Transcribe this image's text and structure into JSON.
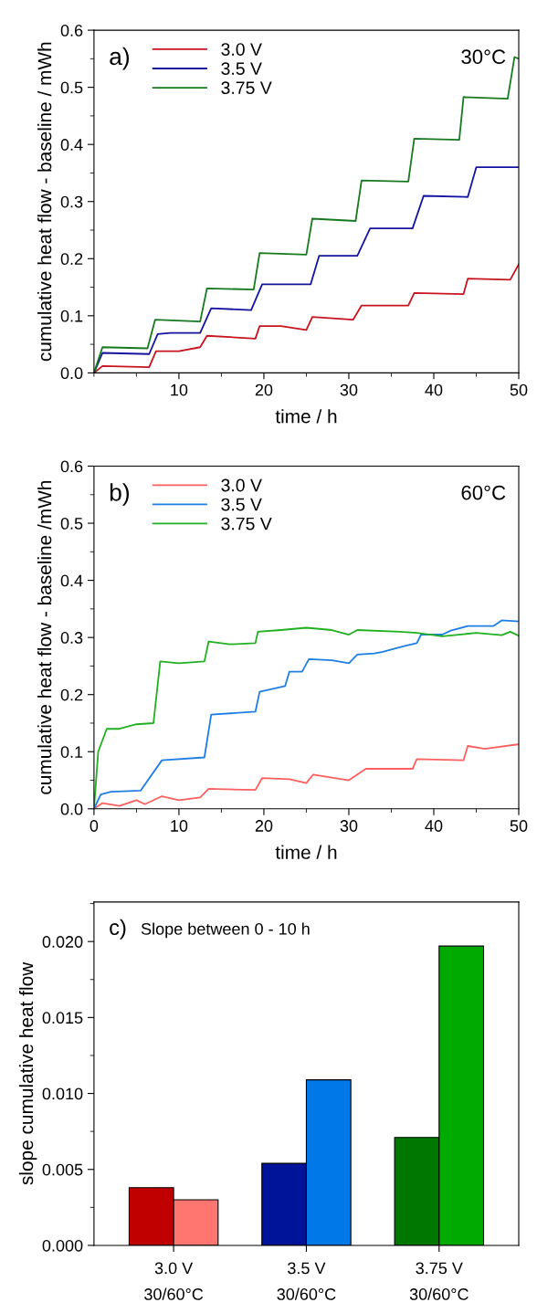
{
  "chart_data": [
    {
      "type": "line",
      "xlabel": "time / h",
      "ylabel": "cumulative heat flow - baseline / mWh",
      "annotations": [
        "a)",
        "30°C"
      ],
      "xlim": [
        0,
        50
      ],
      "xticks": [
        10,
        20,
        30,
        40,
        50
      ],
      "ylim": [
        0,
        0.6
      ],
      "yticks": [
        {
          "value": 0,
          "label": "0.0"
        },
        0.1,
        0.2,
        0.3,
        0.4,
        0.5,
        0.6
      ],
      "legend": "top left",
      "grid": false,
      "series": [
        {
          "name": "3.0 V",
          "color": "#c8141e",
          "x": [
            0,
            1,
            6.5,
            7.3,
            10,
            12.5,
            13.3,
            19,
            19.5,
            22,
            25,
            25.7,
            30.5,
            31.5,
            37,
            37.7,
            43.5,
            44,
            49,
            50
          ],
          "values": [
            0,
            0.012,
            0.01,
            0.038,
            0.038,
            0.045,
            0.065,
            0.06,
            0.082,
            0.082,
            0.075,
            0.098,
            0.093,
            0.118,
            0.118,
            0.14,
            0.138,
            0.165,
            0.163,
            0.19
          ]
        },
        {
          "name": "3.5 V",
          "color": "#1414a0",
          "x": [
            0,
            1,
            6.5,
            7.5,
            9,
            12.5,
            13.8,
            18.5,
            19.8,
            25.5,
            26.5,
            31,
            32.5,
            37.5,
            38.8,
            44,
            45,
            50
          ],
          "values": [
            0,
            0.035,
            0.033,
            0.068,
            0.07,
            0.07,
            0.113,
            0.11,
            0.155,
            0.155,
            0.205,
            0.205,
            0.253,
            0.253,
            0.31,
            0.308,
            0.36,
            0.36
          ]
        },
        {
          "name": "3.75 V",
          "color": "#167a1e",
          "x": [
            0,
            1,
            6.3,
            7.2,
            12.5,
            13.3,
            18.8,
            19.5,
            25,
            25.7,
            30.8,
            31.5,
            37,
            37.7,
            43,
            43.5,
            48.7,
            49.5,
            50
          ],
          "values": [
            0,
            0.045,
            0.043,
            0.093,
            0.09,
            0.148,
            0.146,
            0.21,
            0.207,
            0.27,
            0.266,
            0.337,
            0.335,
            0.41,
            0.408,
            0.483,
            0.48,
            0.553,
            0.55
          ]
        }
      ]
    },
    {
      "type": "line",
      "xlabel": "time / h",
      "ylabel": "cumulative heat flow - baseline /mWh",
      "annotations": [
        "b)",
        "60°C"
      ],
      "xlim": [
        0,
        50
      ],
      "xticks": [
        0,
        10,
        20,
        30,
        40,
        50
      ],
      "ylim": [
        0,
        0.6
      ],
      "yticks": [
        {
          "value": 0,
          "label": "0.0"
        },
        0.1,
        0.2,
        0.3,
        0.4,
        0.5,
        0.6
      ],
      "legend": "top left",
      "grid": false,
      "series": [
        {
          "name": "3.0 V",
          "color": "#ff5f5f",
          "x": [
            0,
            1,
            3,
            5,
            6,
            8,
            10,
            12.5,
            13.5,
            19,
            19.8,
            23,
            25,
            25.8,
            30,
            32,
            37.5,
            38,
            43.5,
            44,
            46,
            50
          ],
          "values": [
            0,
            0.01,
            0.005,
            0.015,
            0.008,
            0.022,
            0.015,
            0.02,
            0.035,
            0.033,
            0.054,
            0.052,
            0.045,
            0.06,
            0.05,
            0.07,
            0.07,
            0.087,
            0.085,
            0.11,
            0.105,
            0.113
          ]
        },
        {
          "name": "3.5 V",
          "color": "#1e7ee6",
          "x": [
            0,
            0.8,
            2,
            5.5,
            8,
            13,
            13.8,
            19,
            19.5,
            22.5,
            23,
            24.5,
            25.3,
            28,
            30,
            31,
            33,
            34,
            36.5,
            38,
            38.5,
            41,
            42,
            44,
            47,
            48,
            50
          ],
          "values": [
            0,
            0.025,
            0.03,
            0.032,
            0.085,
            0.09,
            0.165,
            0.17,
            0.205,
            0.215,
            0.24,
            0.24,
            0.262,
            0.26,
            0.255,
            0.27,
            0.272,
            0.275,
            0.285,
            0.29,
            0.305,
            0.305,
            0.312,
            0.32,
            0.32,
            0.33,
            0.328
          ]
        },
        {
          "name": "3.75 V",
          "color": "#20b020",
          "x": [
            0,
            0.5,
            1.5,
            3,
            5,
            7,
            7.8,
            10,
            13,
            13.5,
            16,
            19,
            19.3,
            22,
            25,
            28,
            30,
            31,
            36,
            38,
            41,
            45,
            48,
            49,
            50
          ],
          "values": [
            0,
            0.1,
            0.14,
            0.14,
            0.148,
            0.15,
            0.258,
            0.255,
            0.258,
            0.293,
            0.288,
            0.29,
            0.31,
            0.313,
            0.317,
            0.313,
            0.305,
            0.313,
            0.31,
            0.308,
            0.302,
            0.308,
            0.304,
            0.31,
            0.303
          ]
        }
      ]
    },
    {
      "type": "bar",
      "ylabel": "slope cumulative heat flow",
      "annotations": [
        "c)",
        "Slope between 0 - 10 h"
      ],
      "categories": [
        "3.0 V\n30/60°C",
        "3.5 V\n30/60°C",
        "3.75 V\n30/60°C"
      ],
      "ylim": [
        0,
        0.0226
      ],
      "yticks": [
        {
          "value": 0,
          "label": "0.000"
        },
        {
          "value": 0.005,
          "label": "0.005"
        },
        {
          "value": 0.01,
          "label": "0.010"
        },
        {
          "value": 0.015,
          "label": "0.015"
        },
        {
          "value": 0.02,
          "label": "0.020"
        }
      ],
      "grid": false,
      "series": [
        {
          "colors": [
            "#c00000",
            "#001499",
            "#007800"
          ],
          "values": [
            0.0038,
            0.0054,
            0.0071
          ]
        },
        {
          "colors": [
            "#ff7570",
            "#0078e8",
            "#00aa00"
          ],
          "values": [
            0.003,
            0.0109,
            0.0197
          ]
        }
      ]
    }
  ]
}
